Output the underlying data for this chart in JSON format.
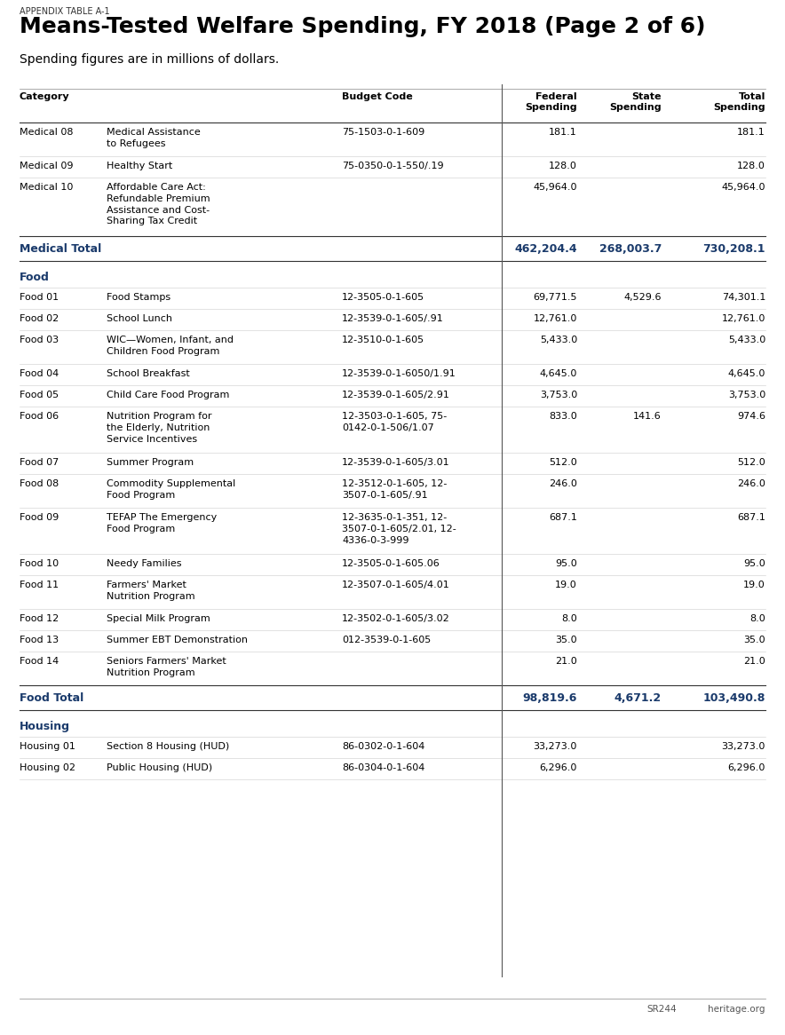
{
  "header_label": "APPENDIX TABLE A-1",
  "title": "Means-Tested Welfare Spending, FY 2018 (Page 2 of 6)",
  "subtitle": "Spending figures are in millions of dollars.",
  "blue_color": "#1a3a6b",
  "footer_left": "SR244",
  "footer_right": "heritage.org",
  "rows": [
    {
      "type": "data",
      "category": "Medical 08",
      "description": "Medical Assistance\nto Refugees",
      "budget_code": "75-1503-0-1-609",
      "federal": "181.1",
      "state": "",
      "total": "181.1"
    },
    {
      "type": "data",
      "category": "Medical 09",
      "description": "Healthy Start",
      "budget_code": "75-0350-0-1-550/.19",
      "federal": "128.0",
      "state": "",
      "total": "128.0"
    },
    {
      "type": "data",
      "category": "Medical 10",
      "description": "Affordable Care Act:\nRefundable Premium\nAssistance and Cost-\nSharing Tax Credit",
      "budget_code": "",
      "federal": "45,964.0",
      "state": "",
      "total": "45,964.0"
    },
    {
      "type": "total",
      "category": "Medical Total",
      "description": "",
      "budget_code": "",
      "federal": "462,204.4",
      "state": "268,003.7",
      "total": "730,208.1"
    },
    {
      "type": "section",
      "category": "Food",
      "description": "",
      "budget_code": "",
      "federal": "",
      "state": "",
      "total": ""
    },
    {
      "type": "data",
      "category": "Food 01",
      "description": "Food Stamps",
      "budget_code": "12-3505-0-1-605",
      "federal": "69,771.5",
      "state": "4,529.6",
      "total": "74,301.1"
    },
    {
      "type": "data",
      "category": "Food 02",
      "description": "School Lunch",
      "budget_code": "12-3539-0-1-605/.91",
      "federal": "12,761.0",
      "state": "",
      "total": "12,761.0"
    },
    {
      "type": "data",
      "category": "Food 03",
      "description": "WIC—Women, Infant, and\nChildren Food Program",
      "budget_code": "12-3510-0-1-605",
      "federal": "5,433.0",
      "state": "",
      "total": "5,433.0"
    },
    {
      "type": "data",
      "category": "Food 04",
      "description": "School Breakfast",
      "budget_code": "12-3539-0-1-6050/1.91",
      "federal": "4,645.0",
      "state": "",
      "total": "4,645.0"
    },
    {
      "type": "data",
      "category": "Food 05",
      "description": "Child Care Food Program",
      "budget_code": "12-3539-0-1-605/2.91",
      "federal": "3,753.0",
      "state": "",
      "total": "3,753.0"
    },
    {
      "type": "data",
      "category": "Food 06",
      "description": "Nutrition Program for\nthe Elderly, Nutrition\nService Incentives",
      "budget_code": "12-3503-0-1-605, 75-\n0142-0-1-506/1.07",
      "federal": "833.0",
      "state": "141.6",
      "total": "974.6"
    },
    {
      "type": "data",
      "category": "Food 07",
      "description": "Summer Program",
      "budget_code": "12-3539-0-1-605/3.01",
      "federal": "512.0",
      "state": "",
      "total": "512.0"
    },
    {
      "type": "data",
      "category": "Food 08",
      "description": "Commodity Supplemental\nFood Program",
      "budget_code": "12-3512-0-1-605, 12-\n3507-0-1-605/.91",
      "federal": "246.0",
      "state": "",
      "total": "246.0"
    },
    {
      "type": "data",
      "category": "Food 09",
      "description": "TEFAP The Emergency\nFood Program",
      "budget_code": "12-3635-0-1-351, 12-\n3507-0-1-605/2.01, 12-\n4336-0-3-999",
      "federal": "687.1",
      "state": "",
      "total": "687.1"
    },
    {
      "type": "data",
      "category": "Food 10",
      "description": "Needy Families",
      "budget_code": "12-3505-0-1-605.06",
      "federal": "95.0",
      "state": "",
      "total": "95.0"
    },
    {
      "type": "data",
      "category": "Food 11",
      "description": "Farmers' Market\nNutrition Program",
      "budget_code": "12-3507-0-1-605/4.01",
      "federal": "19.0",
      "state": "",
      "total": "19.0"
    },
    {
      "type": "data",
      "category": "Food 12",
      "description": "Special Milk Program",
      "budget_code": "12-3502-0-1-605/3.02",
      "federal": "8.0",
      "state": "",
      "total": "8.0"
    },
    {
      "type": "data",
      "category": "Food 13",
      "description": "Summer EBT Demonstration",
      "budget_code": "012-3539-0-1-605",
      "federal": "35.0",
      "state": "",
      "total": "35.0"
    },
    {
      "type": "data",
      "category": "Food 14",
      "description": "Seniors Farmers' Market\nNutrition Program",
      "budget_code": "",
      "federal": "21.0",
      "state": "",
      "total": "21.0"
    },
    {
      "type": "total",
      "category": "Food Total",
      "description": "",
      "budget_code": "",
      "federal": "98,819.6",
      "state": "4,671.2",
      "total": "103,490.8"
    },
    {
      "type": "section",
      "category": "Housing",
      "description": "",
      "budget_code": "",
      "federal": "",
      "state": "",
      "total": ""
    },
    {
      "type": "data",
      "category": "Housing 01",
      "description": "Section 8 Housing (HUD)",
      "budget_code": "86-0302-0-1-604",
      "federal": "33,273.0",
      "state": "",
      "total": "33,273.0"
    },
    {
      "type": "data",
      "category": "Housing 02",
      "description": "Public Housing (HUD)",
      "budget_code": "86-0304-0-1-604",
      "federal": "6,296.0",
      "state": "",
      "total": "6,296.0"
    }
  ]
}
